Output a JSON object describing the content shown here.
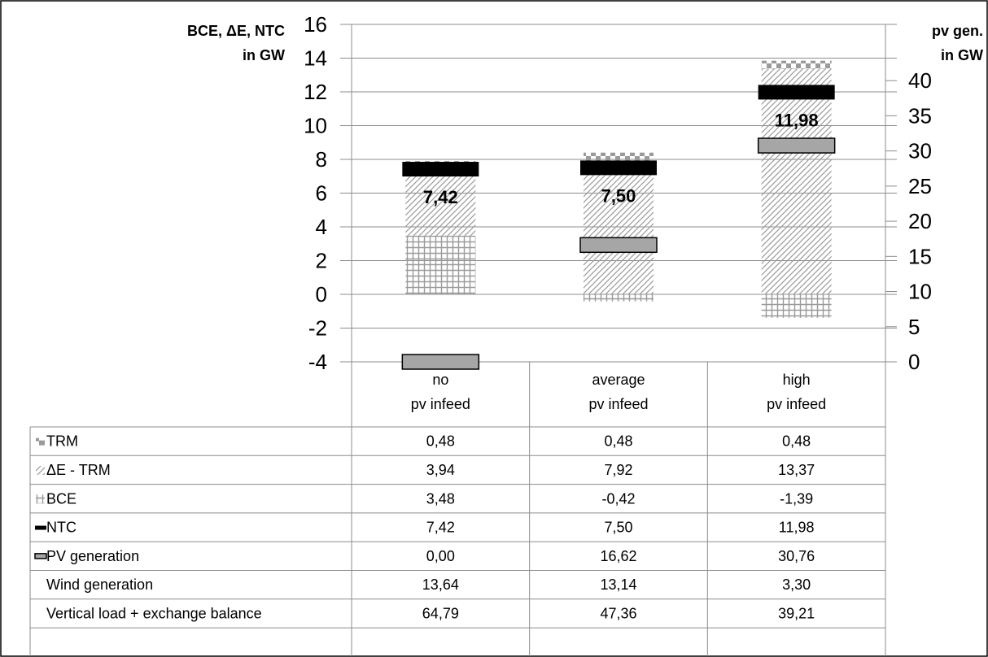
{
  "chart_data": {
    "type": "bar",
    "stacked": true,
    "categories": [
      [
        "no",
        "pv infeed"
      ],
      [
        "average",
        "pv infeed"
      ],
      [
        "high",
        "pv infeed"
      ]
    ],
    "left_axis": {
      "title": [
        "BCE, ΔE, NTC",
        "in GW"
      ],
      "min": -4,
      "max": 16,
      "step": 2,
      "tick_labels": [
        "-4",
        "-2",
        "0",
        "2",
        "4",
        "6",
        "8",
        "10",
        "12",
        "14",
        "16"
      ]
    },
    "right_axis": {
      "title": [
        "pv gen.",
        "in GW"
      ],
      "min": 0,
      "max": 48,
      "step": 5,
      "tick_labels": [
        "0",
        "5",
        "10",
        "15",
        "20",
        "25",
        "30",
        "35",
        "40"
      ]
    },
    "grid": true,
    "series": [
      {
        "name": "TRM",
        "kind": "stack",
        "pattern": "checker",
        "values": [
          0.48,
          0.48,
          0.48
        ],
        "display": [
          "0,48",
          "0,48",
          "0,48"
        ]
      },
      {
        "name": "ΔE - TRM",
        "kind": "stack",
        "pattern": "diagonal",
        "values": [
          3.94,
          7.92,
          13.37
        ],
        "display": [
          "3,94",
          "7,92",
          "13,37"
        ]
      },
      {
        "name": "BCE",
        "kind": "stack",
        "pattern": "grid",
        "values": [
          3.48,
          -0.42,
          -1.39
        ],
        "display": [
          "3,48",
          "-0,42",
          "-1,39"
        ]
      },
      {
        "name": "NTC",
        "kind": "marker",
        "axis": "left",
        "color": "#000000",
        "values": [
          7.42,
          7.5,
          11.98
        ],
        "display": [
          "7,42",
          "7,50",
          "11,98"
        ]
      },
      {
        "name": "PV generation",
        "kind": "marker",
        "axis": "right",
        "color": "#a6a6a6",
        "values": [
          0.0,
          16.62,
          30.76
        ],
        "display": [
          "0,00",
          "16,62",
          "30,76"
        ]
      },
      {
        "name": "Wind generation",
        "kind": "table_only",
        "values": [
          13.64,
          13.14,
          3.3
        ],
        "display": [
          "13,64",
          "13,14",
          "3,30"
        ]
      },
      {
        "name": "Vertical load + exchange balance",
        "kind": "table_only",
        "values": [
          64.79,
          47.36,
          39.21
        ],
        "display": [
          "64,79",
          "47,36",
          "39,21"
        ]
      }
    ],
    "data_labels": [
      "7,42",
      "7,50",
      "11,98"
    ]
  }
}
